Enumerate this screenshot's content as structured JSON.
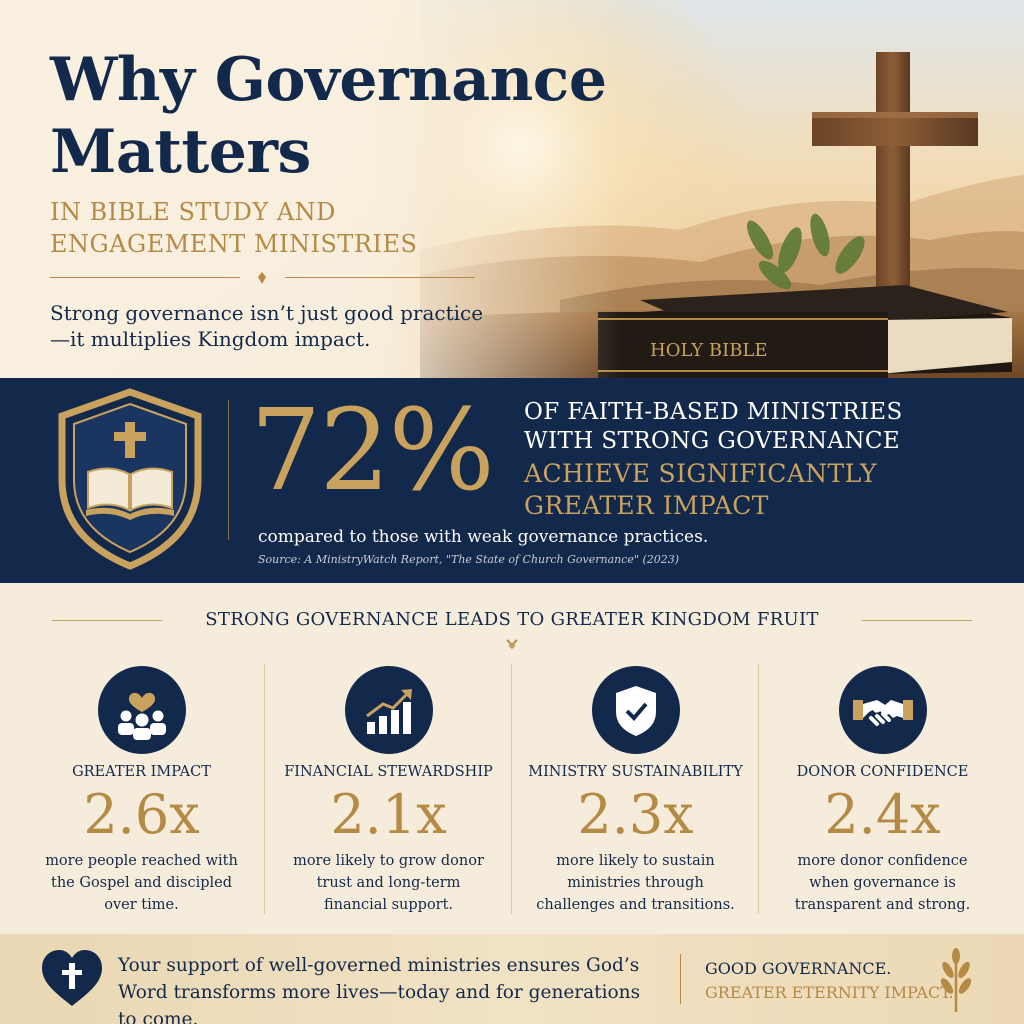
{
  "hero": {
    "title": "Why Governance Matters",
    "subtitle": "In Bible Study and Engagement Ministries",
    "tagline": "Strong governance isn’t just good practice—it multiplies Kingdom impact.",
    "bible_label": "HOLY BIBLE"
  },
  "stat": {
    "value": "72%",
    "line1": "of faith-based ministries",
    "line2": "with strong governance",
    "highlight1": "achieve significantly",
    "highlight2": "greater impact",
    "comparison": "compared to those with weak governance practices.",
    "source": "Source: A MinistryWatch Report, \"The State of Church Governance\" (2023)"
  },
  "section": {
    "title": "Strong Governance Leads to Greater Kingdom Fruit"
  },
  "cards": [
    {
      "icon": "community-heart-icon",
      "title": "Greater Impact",
      "value": "2.6x",
      "description": "more people reached with the Gospel and discipled over time."
    },
    {
      "icon": "growth-chart-icon",
      "title": "Financial Stewardship",
      "value": "2.1x",
      "description": "more likely to grow donor trust and long-term financial support."
    },
    {
      "icon": "shield-check-icon",
      "title": "Ministry Sustainability",
      "value": "2.3x",
      "description": "more likely to sustain ministries through challenges and transitions."
    },
    {
      "icon": "handshake-icon",
      "title": "Donor Confidence",
      "value": "2.4x",
      "description": "more donor confidence when governance is transparent and strong."
    }
  ],
  "footer": {
    "message": "Your support of well-governed ministries ensures God’s Word transforms more lives—today and for generations to come.",
    "slogan1": "Good Governance.",
    "slogan2": "Greater Eternity Impact."
  },
  "colors": {
    "navy": "#13294b",
    "gold": "#b48a45",
    "cream": "#f6ecdb"
  }
}
